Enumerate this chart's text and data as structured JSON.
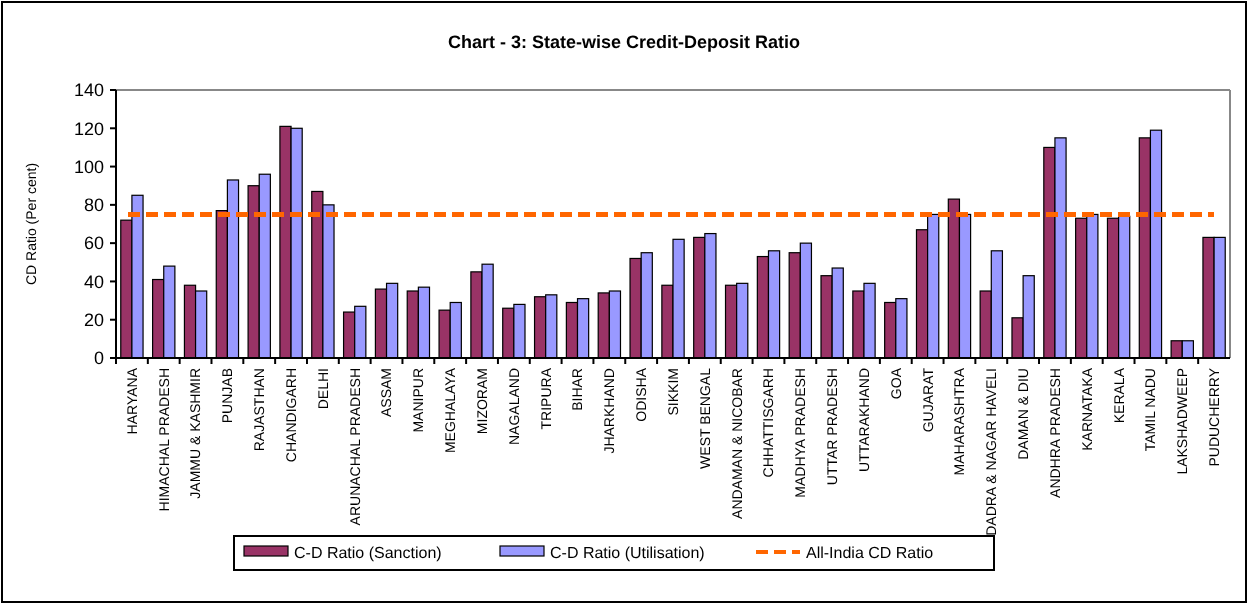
{
  "chart_data": {
    "type": "bar",
    "title": "Chart - 3: State-wise Credit-Deposit Ratio",
    "ylabel": "CD Ratio (Per cent)",
    "categories": [
      "HARYANA",
      "HIMACHAL PRADESH",
      "JAMMU & KASHMIR",
      "PUNJAB",
      "RAJASTHAN",
      "CHANDIGARH",
      "DELHI",
      "ARUNACHAL PRADESH",
      "ASSAM",
      "MANIPUR",
      "MEGHALAYA",
      "MIZORAM",
      "NAGALAND",
      "TRIPURA",
      "BIHAR",
      "JHARKHAND",
      "ODISHA",
      "SIKKIM",
      "WEST BENGAL",
      "ANDAMAN & NICOBAR",
      "CHHATTISGARH",
      "MADHYA PRADESH",
      "UTTAR PRADESH",
      "UTTARAKHAND",
      "GOA",
      "GUJARAT",
      "MAHARASHTRA",
      "DADRA & NAGAR HAVELI",
      "DAMAN & DIU",
      "ANDHRA PRADESH",
      "KARNATAKA",
      "KERALA",
      "TAMIL NADU",
      "LAKSHADWEEP",
      "PUDUCHERRY"
    ],
    "series": [
      {
        "name": "C-D Ratio (Sanction)",
        "color": "#993366",
        "values": [
          72,
          41,
          38,
          77,
          90,
          121,
          87,
          24,
          36,
          35,
          25,
          45,
          26,
          32,
          29,
          34,
          52,
          38,
          63,
          38,
          53,
          55,
          43,
          35,
          29,
          67,
          83,
          35,
          21,
          110,
          73,
          73,
          115,
          9,
          63
        ]
      },
      {
        "name": "C-D Ratio (Utilisation)",
        "color": "#9999ff",
        "values": [
          85,
          48,
          35,
          93,
          96,
          120,
          80,
          27,
          39,
          37,
          29,
          49,
          28,
          33,
          31,
          35,
          55,
          62,
          65,
          39,
          56,
          60,
          47,
          39,
          31,
          75,
          75,
          56,
          43,
          115,
          75,
          74,
          119,
          9,
          63
        ]
      }
    ],
    "ref_lines": [
      {
        "axis": "y",
        "value": 75,
        "label": "All-India CD Ratio",
        "color": "#ff6600",
        "line_style": "dashed"
      }
    ],
    "ylim": [
      0,
      140
    ],
    "yticks": [
      0,
      20,
      40,
      60,
      80,
      100,
      120,
      140
    ],
    "legend": "bottom"
  }
}
